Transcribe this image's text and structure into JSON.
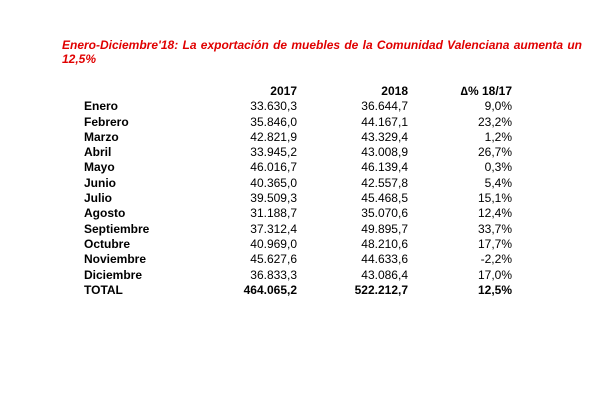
{
  "title": "Enero-Diciembre'18: La exportación de muebles de la Comunidad Valenciana aumenta un 12,5%",
  "colors": {
    "title": "#e00000"
  },
  "table": {
    "headers": [
      "",
      "2017",
      "2018",
      "∆% 18/17"
    ],
    "rows": [
      [
        "Enero",
        "33.630,3",
        "36.644,7",
        "9,0%"
      ],
      [
        "Febrero",
        "35.846,0",
        "44.167,1",
        "23,2%"
      ],
      [
        "Marzo",
        "42.821,9",
        "43.329,4",
        "1,2%"
      ],
      [
        "Abril",
        "33.945,2",
        "43.008,9",
        "26,7%"
      ],
      [
        "Mayo",
        "46.016,7",
        "46.139,4",
        "0,3%"
      ],
      [
        "Junio",
        "40.365,0",
        "42.557,8",
        "5,4%"
      ],
      [
        "Julio",
        "39.509,3",
        "45.468,5",
        "15,1%"
      ],
      [
        "Agosto",
        "31.188,7",
        "35.070,6",
        "12,4%"
      ],
      [
        "Septiembre",
        "37.312,4",
        "49.895,7",
        "33,7%"
      ],
      [
        "Octubre",
        "40.969,0",
        "48.210,6",
        "17,7%"
      ],
      [
        "Noviembre",
        "45.627,6",
        "44.633,6",
        "-2,2%"
      ],
      [
        "Diciembre",
        "36.833,3",
        "43.086,4",
        "17,0%"
      ]
    ],
    "total": [
      "TOTAL",
      "464.065,2",
      "522.212,7",
      "12,5%"
    ]
  }
}
